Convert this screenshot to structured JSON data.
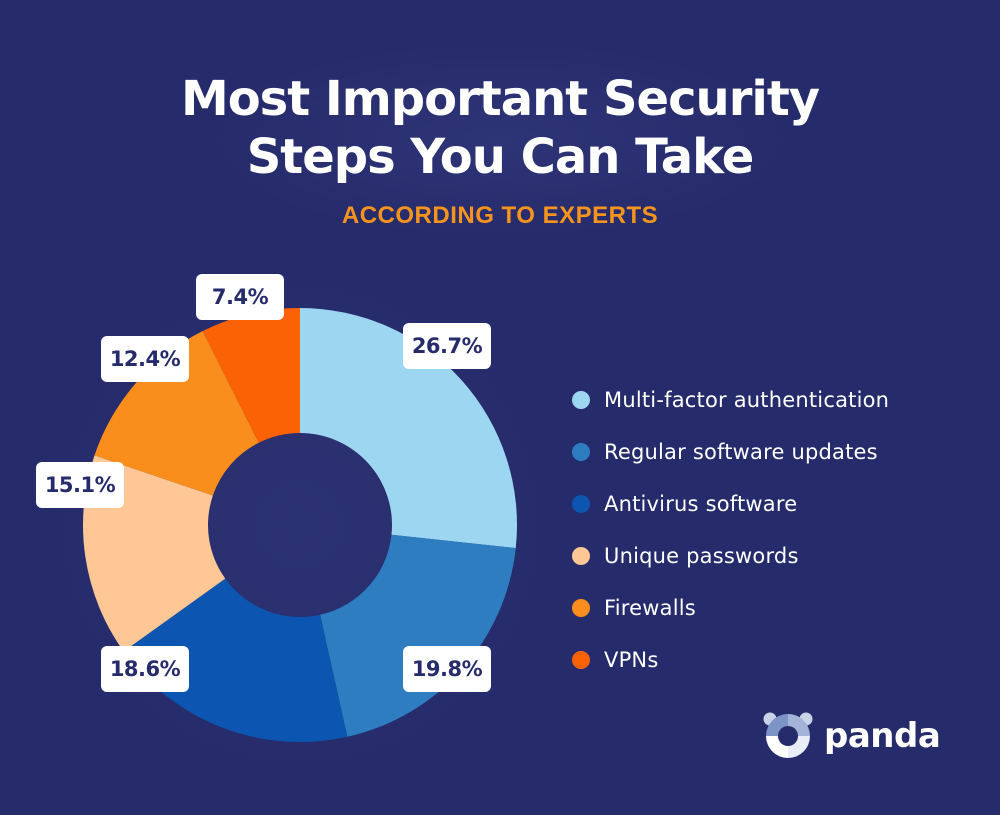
{
  "header": {
    "title_line1": "Most Important Security",
    "title_line2": "Steps You Can Take",
    "subtitle": "ACCORDING TO EXPERTS"
  },
  "colors": {
    "background": "#262b6b",
    "title": "#ffffff",
    "subtitle": "#f7941d",
    "label_text": "#262b6b"
  },
  "chart_data": {
    "type": "pie",
    "variant": "donut",
    "title": "Most Important Security Steps You Can Take",
    "subtitle": "According to Experts",
    "categories": [
      "Multi-factor authentication",
      "Regular software updates",
      "Antivirus software",
      "Unique passwords",
      "Firewalls",
      "VPNs"
    ],
    "values": [
      26.7,
      19.8,
      18.6,
      15.1,
      12.4,
      7.4
    ],
    "value_labels": [
      "26.7%",
      "19.8%",
      "18.6%",
      "15.1%",
      "12.4%",
      "7.4%"
    ],
    "colors": [
      "#9dd6f0",
      "#2d7dc0",
      "#0c55b0",
      "#ffc796",
      "#f98e1c",
      "#fb6205"
    ],
    "start_angle": "12 o'clock",
    "direction": "clockwise",
    "legend_position": "right"
  },
  "legend": {
    "items": [
      {
        "label": "Multi-factor authentication",
        "color": "#9dd6f0"
      },
      {
        "label": "Regular software updates",
        "color": "#2d7dc0"
      },
      {
        "label": "Antivirus software",
        "color": "#0c55b0"
      },
      {
        "label": "Unique passwords",
        "color": "#ffc796"
      },
      {
        "label": "Firewalls",
        "color": "#f98e1c"
      },
      {
        "label": "VPNs",
        "color": "#fb6205"
      }
    ]
  },
  "brand": {
    "name": "panda",
    "icon": "panda-logo-icon"
  }
}
